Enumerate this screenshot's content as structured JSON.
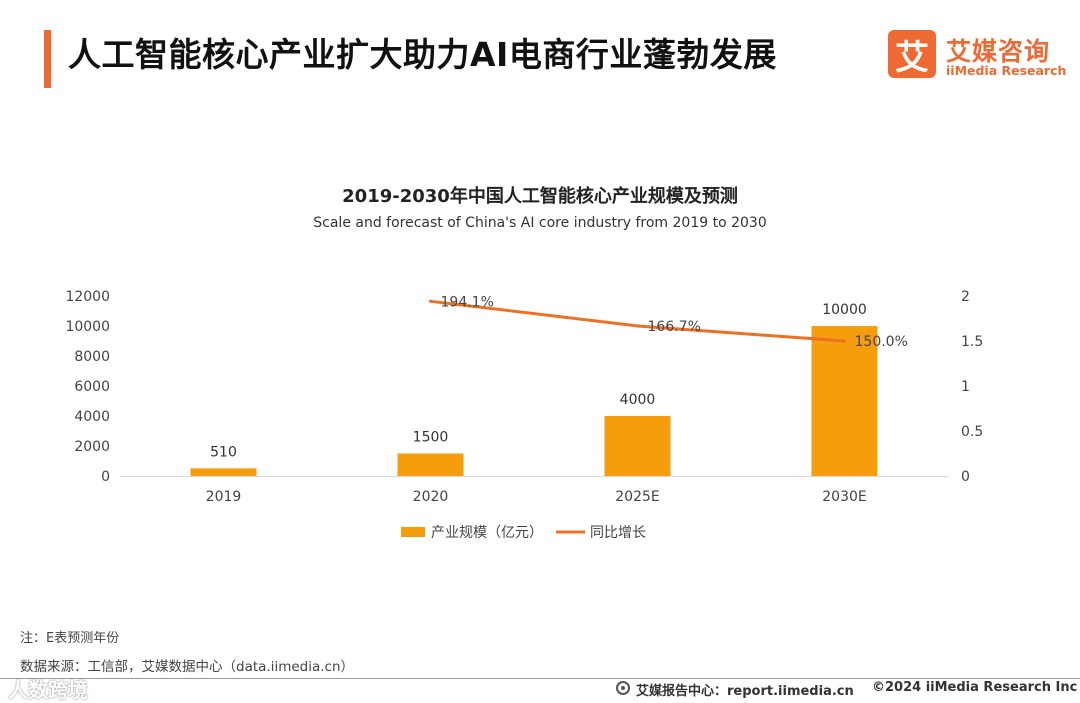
{
  "header": {
    "title": "人工智能核心产业扩大助力AI电商行业蓬勃发展",
    "logo_mark": "艾",
    "logo_cn": "艾媒咨询",
    "logo_en": "iiMedia Research"
  },
  "colors": {
    "accent": "#ef6a32",
    "bar": "#f59d0d",
    "line": "#ed7023",
    "axis": "#d9d9d9"
  },
  "chart_data": {
    "type": "bar",
    "title": "2019-2030年中国人工智能核心产业规模及预测",
    "subtitle": "Scale and forecast of China's AI core industry from 2019 to 2030",
    "categories": [
      "2019",
      "2020",
      "2025E",
      "2030E"
    ],
    "series": [
      {
        "name": "产业规模（亿元）",
        "type": "bar",
        "axis": "left",
        "values": [
          510,
          1500,
          4000,
          10000
        ],
        "labels": [
          "510",
          "1500",
          "4000",
          "10000"
        ]
      },
      {
        "name": "同比增长",
        "type": "line",
        "axis": "right",
        "values": [
          null,
          1.941,
          1.667,
          1.5
        ],
        "labels": [
          "",
          "194.1%",
          "166.7%",
          "150.0%"
        ]
      }
    ],
    "left_axis": {
      "min": 0,
      "max": 12000,
      "ticks": [
        "0",
        "2000",
        "4000",
        "6000",
        "8000",
        "10000",
        "12000"
      ],
      "tick_values": [
        0,
        2000,
        4000,
        6000,
        8000,
        10000,
        12000
      ]
    },
    "right_axis": {
      "min": 0,
      "max": 2,
      "ticks": [
        "0",
        "0.5",
        "1",
        "1.5",
        "2"
      ],
      "tick_values": [
        0,
        0.5,
        1,
        1.5,
        2
      ]
    },
    "legend_position": "bottom",
    "grid": false
  },
  "notes": {
    "note": "注：E表预测年份",
    "source": "数据来源：工信部，艾媒数据中心（data.iimedia.cn）"
  },
  "watermark": "人数跨境",
  "footer": {
    "left": "艾媒报告中心：report.iimedia.cn",
    "right": "©2024  iiMedia Research  Inc"
  }
}
